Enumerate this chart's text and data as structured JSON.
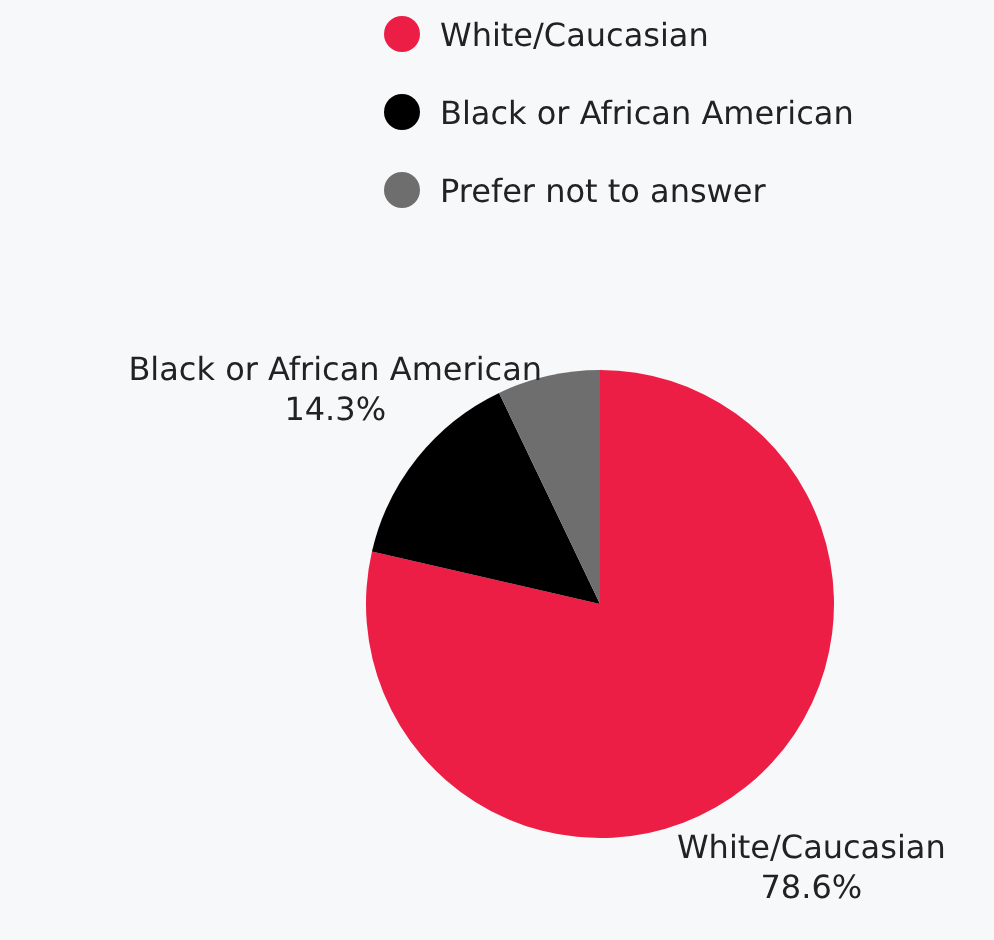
{
  "chart_data": {
    "type": "pie",
    "categories": [
      "White/Caucasian",
      "Black or African American",
      "Prefer not to answer"
    ],
    "values": [
      78.6,
      14.3,
      7.1
    ],
    "colors": [
      "#ec1e45",
      "#000000",
      "#6e6e6e"
    ],
    "value_labels": [
      "78.6%",
      "14.3%",
      null
    ],
    "legend": "top right"
  }
}
